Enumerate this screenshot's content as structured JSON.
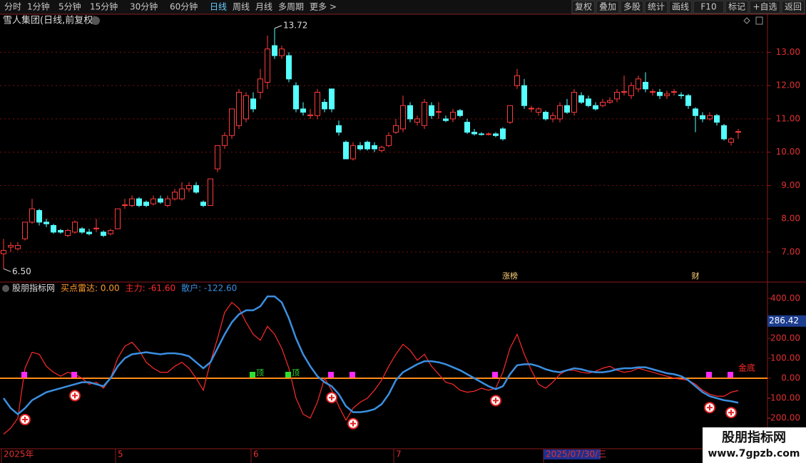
{
  "toolbar": {
    "left": [
      "分时",
      "1分钟",
      "5分钟",
      "15分钟",
      "30分钟",
      "60分钟",
      "日线",
      "周线",
      "月线",
      "多周期",
      "更多 >"
    ],
    "active": 6,
    "right": [
      "复权",
      "叠加",
      "多股",
      "统计",
      "画线",
      "F10",
      "标记",
      "+自选",
      "返回"
    ]
  },
  "chart_data": [
    {
      "type": "candlestick",
      "title": "雪人集团(日线,前复权)",
      "up_color": "#ff3b3b",
      "down_color": "#54ffff",
      "ylim": [
        6.1,
        14.1
      ],
      "yticks": [
        {
          "value": 7,
          "label": "7.00"
        },
        {
          "value": 8,
          "label": "8.00"
        },
        {
          "value": 9,
          "label": "9.00"
        },
        {
          "value": 10,
          "label": "10.00"
        },
        {
          "value": 11,
          "label": "11.00"
        },
        {
          "value": 12,
          "label": "12.00"
        },
        {
          "value": 13,
          "label": "13.00"
        }
      ],
      "grid": true,
      "ohlc": [
        [
          6.95,
          7.4,
          6.5,
          7.05
        ],
        [
          7.15,
          7.3,
          7.0,
          7.2
        ],
        [
          7.1,
          7.3,
          7.05,
          7.2
        ],
        [
          7.4,
          7.9,
          7.35,
          7.9
        ],
        [
          7.9,
          8.6,
          7.85,
          8.3
        ],
        [
          8.25,
          8.3,
          7.8,
          7.9
        ],
        [
          7.9,
          8.0,
          7.75,
          7.85
        ],
        [
          7.8,
          7.85,
          7.55,
          7.6
        ],
        [
          7.65,
          7.7,
          7.55,
          7.6
        ],
        [
          7.5,
          7.7,
          7.45,
          7.65
        ],
        [
          7.6,
          7.95,
          7.55,
          7.9
        ],
        [
          7.7,
          7.75,
          7.55,
          7.6
        ],
        [
          7.6,
          7.7,
          7.5,
          7.55
        ],
        [
          7.7,
          8.0,
          7.6,
          7.72
        ],
        [
          7.6,
          7.65,
          7.45,
          7.5
        ],
        [
          7.55,
          7.7,
          7.5,
          7.65
        ],
        [
          7.7,
          8.3,
          7.7,
          8.3
        ],
        [
          8.4,
          8.6,
          8.3,
          8.42
        ],
        [
          8.4,
          8.7,
          8.35,
          8.6
        ],
        [
          8.6,
          8.65,
          8.35,
          8.4
        ],
        [
          8.5,
          8.55,
          8.35,
          8.4
        ],
        [
          8.45,
          8.7,
          8.4,
          8.6
        ],
        [
          8.6,
          8.7,
          8.45,
          8.5
        ],
        [
          8.4,
          8.7,
          8.35,
          8.6
        ],
        [
          8.6,
          8.9,
          8.55,
          8.8
        ],
        [
          8.6,
          9.1,
          8.55,
          8.9
        ],
        [
          8.9,
          9.1,
          8.8,
          9.0
        ],
        [
          9.0,
          9.1,
          8.75,
          8.8
        ],
        [
          8.5,
          8.55,
          8.35,
          8.4
        ],
        [
          8.4,
          9.2,
          8.4,
          9.2
        ],
        [
          9.5,
          10.2,
          9.4,
          10.2
        ],
        [
          10.2,
          10.6,
          10.1,
          10.5
        ],
        [
          10.5,
          11.3,
          10.4,
          11.3
        ],
        [
          10.8,
          11.9,
          10.7,
          11.8
        ],
        [
          11.0,
          11.8,
          10.9,
          11.7
        ],
        [
          11.6,
          11.8,
          11.2,
          11.3
        ],
        [
          11.8,
          12.5,
          11.6,
          12.2
        ],
        [
          12.1,
          13.5,
          11.9,
          13.1
        ],
        [
          13.2,
          13.72,
          12.8,
          12.9
        ],
        [
          12.9,
          13.2,
          12.8,
          13.1
        ],
        [
          12.9,
          13.0,
          12.1,
          12.2
        ],
        [
          12.0,
          12.1,
          11.2,
          11.3
        ],
        [
          11.3,
          11.5,
          11.1,
          11.2
        ],
        [
          11.1,
          11.3,
          11.0,
          11.12
        ],
        [
          11.1,
          11.9,
          11.0,
          11.8
        ],
        [
          11.5,
          11.6,
          11.2,
          11.3
        ],
        [
          11.9,
          11.9,
          11.2,
          11.3
        ],
        [
          10.8,
          10.95,
          10.5,
          10.6
        ],
        [
          10.3,
          10.35,
          9.8,
          9.8
        ],
        [
          9.8,
          10.3,
          9.75,
          10.2
        ],
        [
          10.2,
          10.3,
          10.05,
          10.1
        ],
        [
          10.3,
          10.35,
          10.05,
          10.1
        ],
        [
          10.2,
          10.3,
          10.0,
          10.1
        ],
        [
          10.05,
          10.2,
          10.0,
          10.15
        ],
        [
          10.2,
          10.6,
          10.15,
          10.5
        ],
        [
          10.6,
          11.0,
          10.55,
          10.8
        ],
        [
          10.7,
          11.7,
          10.6,
          11.4
        ],
        [
          11.4,
          11.5,
          10.9,
          11.0
        ],
        [
          10.9,
          11.1,
          10.8,
          11.0
        ],
        [
          10.8,
          11.6,
          10.7,
          11.5
        ],
        [
          11.4,
          11.5,
          11.0,
          11.1
        ],
        [
          11.2,
          11.5,
          11.0,
          11.22
        ],
        [
          11.0,
          11.1,
          10.9,
          10.95
        ],
        [
          11.0,
          11.3,
          10.9,
          11.2
        ],
        [
          11.25,
          11.3,
          11.05,
          11.1
        ],
        [
          10.9,
          11.0,
          10.55,
          10.6
        ],
        [
          10.6,
          10.7,
          10.5,
          10.55
        ],
        [
          10.55,
          10.6,
          10.5,
          10.53
        ],
        [
          10.53,
          10.6,
          10.5,
          10.55
        ],
        [
          10.55,
          10.6,
          10.45,
          10.5
        ],
        [
          10.7,
          10.75,
          10.35,
          10.4
        ],
        [
          10.9,
          11.4,
          10.85,
          11.4
        ],
        [
          12.0,
          12.5,
          11.9,
          12.3
        ],
        [
          12.0,
          12.2,
          11.3,
          11.4
        ],
        [
          11.3,
          11.4,
          11.2,
          11.32
        ],
        [
          11.2,
          11.35,
          11.1,
          11.3
        ],
        [
          11.2,
          11.25,
          10.95,
          11.0
        ],
        [
          11.0,
          11.2,
          10.9,
          11.1
        ],
        [
          11.0,
          11.5,
          10.9,
          11.4
        ],
        [
          11.4,
          11.6,
          11.15,
          11.2
        ],
        [
          11.2,
          11.9,
          11.1,
          11.8
        ],
        [
          11.7,
          11.8,
          11.45,
          11.5
        ],
        [
          11.6,
          11.7,
          11.35,
          11.4
        ],
        [
          11.4,
          11.5,
          11.25,
          11.3
        ],
        [
          11.4,
          11.6,
          11.35,
          11.5
        ],
        [
          11.5,
          11.65,
          11.45,
          11.55
        ],
        [
          11.6,
          11.9,
          11.5,
          11.8
        ],
        [
          11.8,
          12.3,
          11.7,
          11.82
        ],
        [
          11.7,
          12.1,
          11.6,
          12.0
        ],
        [
          11.9,
          12.3,
          11.8,
          12.2
        ],
        [
          12.1,
          12.4,
          11.8,
          11.9
        ],
        [
          11.8,
          11.9,
          11.7,
          11.82
        ],
        [
          11.8,
          11.9,
          11.6,
          11.7
        ],
        [
          11.7,
          11.85,
          11.6,
          11.75
        ],
        [
          11.8,
          11.9,
          11.7,
          11.82
        ],
        [
          11.72,
          11.8,
          11.6,
          11.7
        ],
        [
          11.7,
          11.75,
          11.3,
          11.4
        ],
        [
          11.3,
          11.35,
          10.6,
          11.1
        ],
        [
          11.1,
          11.2,
          10.9,
          11.0
        ],
        [
          11.0,
          11.2,
          10.95,
          11.1
        ],
        [
          11.1,
          11.15,
          10.8,
          10.9
        ],
        [
          10.8,
          10.85,
          10.35,
          10.4
        ],
        [
          10.3,
          10.45,
          10.2,
          10.4
        ],
        [
          10.6,
          10.7,
          10.4,
          10.62
        ]
      ],
      "high_label": {
        "index": 38,
        "value": 13.72,
        "label": "13.72"
      },
      "low_label": {
        "index": 0,
        "value": 6.5,
        "label": "6.50"
      },
      "events": [
        {
          "index": 71,
          "label": "涨榜"
        },
        {
          "index": 97,
          "label": "财"
        }
      ]
    },
    {
      "type": "line",
      "title": "股朋指标网",
      "subtitle": "买点雷达: 0.00",
      "ylim": [
        -346,
        478
      ],
      "yticks": [
        {
          "value": 400,
          "label": "400.00"
        },
        {
          "value": 200,
          "label": "200.00"
        },
        {
          "value": 100,
          "label": "100.00"
        },
        {
          "value": 0,
          "label": "0.00"
        },
        {
          "value": -100,
          "label": "-100.00"
        },
        {
          "value": -200,
          "label": "-200.00"
        }
      ],
      "cursor_label": {
        "value": 286.42,
        "label": "286.42"
      },
      "series": [
        {
          "name": "主力: -61.60",
          "color": "#ff2a2a",
          "values": [
            -280,
            -250,
            -200,
            50,
            130,
            120,
            60,
            30,
            10,
            30,
            20,
            0,
            -30,
            -20,
            -50,
            0,
            100,
            160,
            180,
            140,
            80,
            50,
            30,
            30,
            60,
            80,
            50,
            0,
            -60,
            80,
            200,
            330,
            380,
            350,
            280,
            220,
            190,
            260,
            220,
            150,
            50,
            -100,
            -180,
            -200,
            -120,
            0,
            -60,
            -140,
            -210,
            -150,
            -120,
            -100,
            -60,
            -10,
            60,
            120,
            170,
            140,
            90,
            120,
            60,
            20,
            -20,
            -30,
            -60,
            -70,
            -65,
            -50,
            -60,
            -50,
            30,
            150,
            220,
            120,
            40,
            -30,
            -50,
            -20,
            20,
            40,
            40,
            30,
            25,
            35,
            50,
            60,
            40,
            30,
            35,
            50,
            40,
            30,
            20,
            10,
            0,
            -5,
            -10,
            -30,
            -60,
            -80,
            -90,
            -90,
            -70,
            -61.6
          ]
        },
        {
          "name": "散户: -122.60",
          "color": "#3b8fe0",
          "values": [
            -100,
            -150,
            -180,
            -150,
            -110,
            -90,
            -70,
            -60,
            -50,
            -40,
            -30,
            -20,
            -20,
            -30,
            -40,
            0,
            60,
            100,
            120,
            125,
            130,
            125,
            120,
            125,
            125,
            120,
            110,
            80,
            50,
            80,
            150,
            220,
            280,
            320,
            340,
            340,
            360,
            410,
            410,
            380,
            300,
            200,
            120,
            60,
            10,
            -20,
            -40,
            -80,
            -140,
            -170,
            -170,
            -165,
            -155,
            -130,
            -80,
            -10,
            30,
            50,
            70,
            85,
            85,
            80,
            70,
            55,
            40,
            20,
            0,
            -20,
            -40,
            -55,
            -40,
            20,
            65,
            70,
            70,
            60,
            45,
            35,
            30,
            40,
            50,
            45,
            35,
            30,
            30,
            35,
            45,
            50,
            50,
            55,
            55,
            45,
            35,
            25,
            20,
            10,
            -10,
            -40,
            -70,
            -90,
            -100,
            -110,
            -115,
            -122.6
          ]
        }
      ],
      "buy_signals": [
        3,
        10,
        46,
        49,
        69,
        99,
        102
      ],
      "top_signals": {
        "indices": [
          35,
          40
        ],
        "label": "顶"
      },
      "bottom_signal": {
        "index": 103,
        "label": "金底"
      },
      "x_labels": [
        {
          "index": 0,
          "label": "2025年"
        },
        {
          "index": 16,
          "label": "5"
        },
        {
          "index": 35,
          "label": "6"
        },
        {
          "index": 55,
          "label": "7"
        },
        {
          "index": 76,
          "label": "2025/07/30/三"
        }
      ]
    }
  ],
  "watermark": {
    "title": "股朋指标网",
    "url": "www.7gpzb.com"
  }
}
